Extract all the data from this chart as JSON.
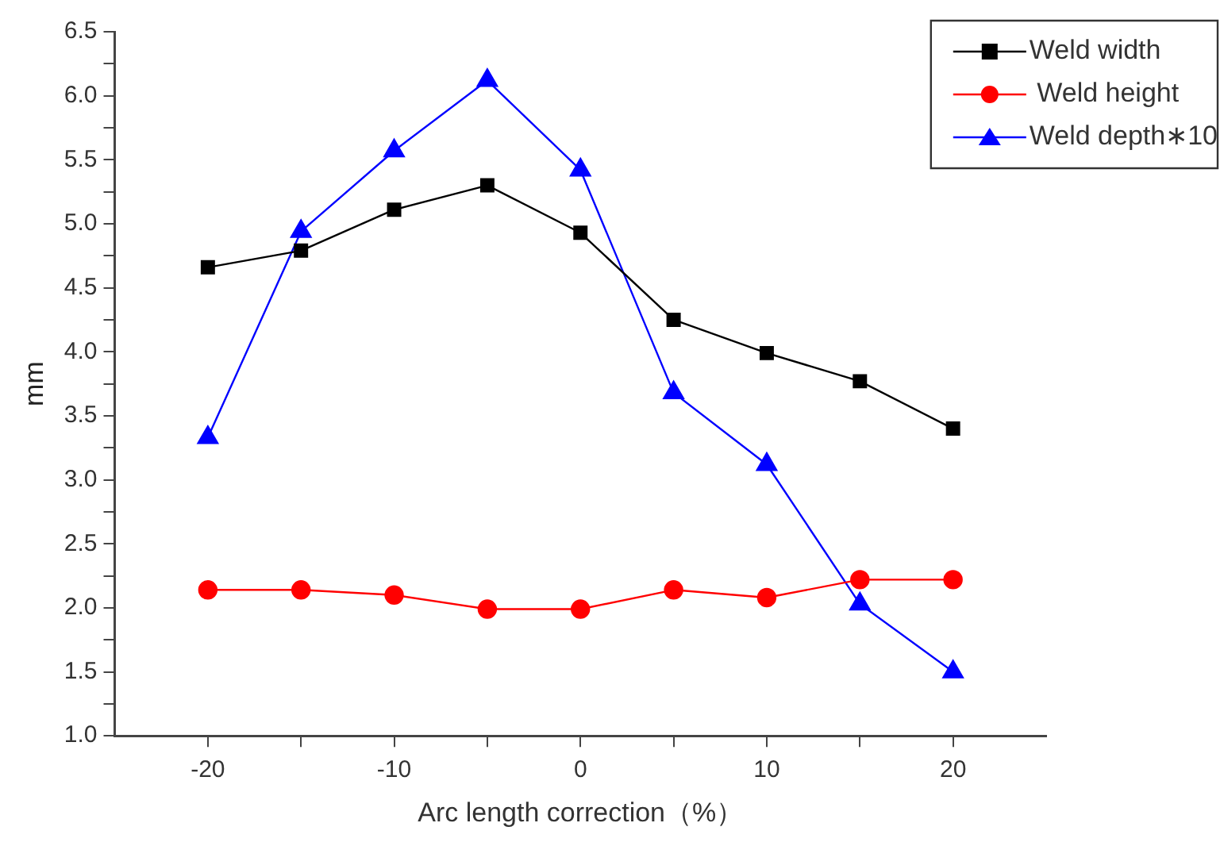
{
  "chart_data": {
    "type": "line",
    "xlabel": "Arc length correction（%）",
    "ylabel": "mm",
    "x": [
      -20,
      -15,
      -10,
      -5,
      0,
      5,
      10,
      15,
      20
    ],
    "series": [
      {
        "name": "Weld width",
        "color": "#000000",
        "marker": "square",
        "values": [
          4.66,
          4.79,
          5.11,
          5.3,
          4.93,
          4.25,
          3.99,
          3.77,
          3.4
        ]
      },
      {
        "name": " Weld height",
        "color": "#ff0000",
        "marker": "circle",
        "values": [
          2.14,
          2.14,
          2.1,
          1.99,
          1.99,
          2.14,
          2.08,
          2.22,
          2.22
        ]
      },
      {
        "name": "Weld depth∗10",
        "color": "#0000ff",
        "marker": "triangle",
        "values": [
          3.33,
          4.94,
          5.57,
          6.12,
          5.42,
          3.68,
          3.12,
          2.03,
          1.5
        ]
      }
    ],
    "xlim": [
      -25,
      25
    ],
    "xticks": [
      -20,
      {
        "value": -15,
        "label": null
      },
      -10,
      {
        "value": -5,
        "label": null
      },
      0,
      {
        "value": 5,
        "label": null
      },
      10,
      {
        "value": 15,
        "label": null
      },
      20
    ],
    "ylim": [
      1,
      6.5
    ],
    "yticks": [
      {
        "value": 1,
        "label": "1.0"
      },
      {
        "value": 1.25,
        "label": null
      },
      1.5,
      {
        "value": 1.75,
        "label": null
      },
      {
        "value": 2,
        "label": "2.0"
      },
      {
        "value": 2.25,
        "label": null
      },
      2.5,
      {
        "value": 2.75,
        "label": null
      },
      {
        "value": 3,
        "label": "3.0"
      },
      {
        "value": 3.25,
        "label": null
      },
      3.5,
      {
        "value": 3.75,
        "label": null
      },
      {
        "value": 4,
        "label": "4.0"
      },
      {
        "value": 4.25,
        "label": null
      },
      4.5,
      {
        "value": 4.75,
        "label": null
      },
      {
        "value": 5,
        "label": "5.0"
      },
      {
        "value": 5.25,
        "label": null
      },
      5.5,
      {
        "value": 5.75,
        "label": null
      },
      {
        "value": 6,
        "label": "6.0"
      },
      {
        "value": 6.25,
        "label": null
      },
      6.5
    ],
    "legend": "top right"
  }
}
